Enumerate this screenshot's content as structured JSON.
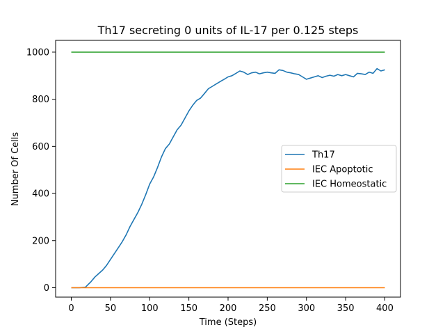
{
  "chart_data": {
    "type": "line",
    "title": "Th17 secreting 0 units of IL-17 per 0.125 steps",
    "xlabel": "Time (Steps)",
    "ylabel": "Number Of Cells",
    "xlim": [
      -20,
      420
    ],
    "ylim": [
      -40,
      1050
    ],
    "xticks": [
      0,
      50,
      100,
      150,
      200,
      250,
      300,
      350,
      400
    ],
    "yticks": [
      0,
      200,
      400,
      600,
      800,
      1000
    ],
    "grid": false,
    "legend_position": "center-right",
    "series": [
      {
        "name": "Th17",
        "color": "#1f77b4",
        "x": [
          0,
          10,
          18,
          25,
          30,
          35,
          40,
          45,
          50,
          55,
          60,
          65,
          70,
          75,
          80,
          85,
          90,
          95,
          100,
          105,
          110,
          115,
          120,
          125,
          130,
          135,
          140,
          145,
          150,
          155,
          160,
          165,
          170,
          175,
          180,
          185,
          190,
          195,
          200,
          205,
          210,
          215,
          220,
          225,
          230,
          235,
          240,
          245,
          250,
          255,
          260,
          265,
          270,
          275,
          280,
          285,
          290,
          295,
          300,
          305,
          310,
          315,
          320,
          325,
          330,
          335,
          340,
          345,
          350,
          355,
          360,
          365,
          370,
          375,
          380,
          385,
          390,
          395,
          400
        ],
        "y": [
          0,
          0,
          2,
          25,
          45,
          60,
          75,
          95,
          120,
          145,
          170,
          195,
          225,
          260,
          290,
          320,
          355,
          395,
          440,
          470,
          510,
          555,
          590,
          610,
          640,
          670,
          690,
          720,
          750,
          775,
          795,
          805,
          825,
          845,
          855,
          865,
          875,
          885,
          895,
          900,
          910,
          920,
          915,
          905,
          912,
          915,
          908,
          912,
          915,
          912,
          910,
          925,
          922,
          915,
          912,
          908,
          905,
          895,
          885,
          890,
          895,
          900,
          892,
          898,
          902,
          898,
          905,
          900,
          905,
          900,
          895,
          910,
          908,
          905,
          915,
          910,
          930,
          920,
          925
        ]
      },
      {
        "name": "IEC Apoptotic",
        "color": "#ff7f0e",
        "x": [
          0,
          400
        ],
        "y": [
          0,
          0
        ]
      },
      {
        "name": "IEC Homeostatic",
        "color": "#2ca02c",
        "x": [
          0,
          400
        ],
        "y": [
          1000,
          1000
        ]
      }
    ]
  }
}
